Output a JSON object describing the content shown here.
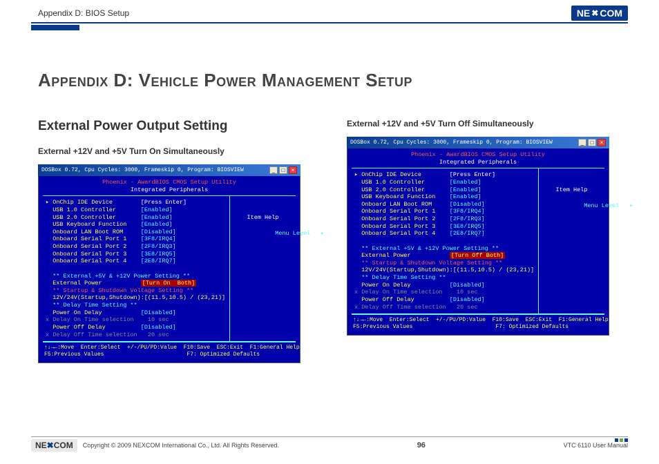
{
  "header": {
    "breadcrumb": "Appendix D: BIOS Setup",
    "brand": "NEXCOM"
  },
  "title": "Appendix D: Vehicle Power Management Setup",
  "left_section": {
    "heading": "External Power Output Setting",
    "subheading": "External +12V and +5V Turn On Simultaneously"
  },
  "right_section": {
    "subheading": "External +12V and +5V Turn Off Simultaneously"
  },
  "bios_common": {
    "titlebar": "DOSBox 0.72, Cpu Cycles:   3000, Frameskip  0, Program: BIOSVIEW",
    "head1": "Phoenix - AwardBIOS CMOS Setup Utility",
    "head2": "Integrated Peripherals",
    "item_help": "Item Help",
    "menu_level": "Menu Level   ▸",
    "footer1": "↑↓→←:Move  Enter:Select  +/-/PU/PD:Value  F10:Save  ESC:Exit  F1:General Help",
    "footer2": "F5:Previous Values                         F7: Optimized Defaults"
  },
  "bios_left": {
    "rows": [
      {
        "label": "▸ OnChip IDE Device",
        "value": "[Press Enter]",
        "cls": "bsel"
      },
      {
        "label": "  USB 1.0 Controller",
        "value": "[Enabled]",
        "cls": "benab"
      },
      {
        "label": "  USB 2.0 Controller",
        "value": "[Enabled]",
        "cls": "benab"
      },
      {
        "label": "  USB Keyboard Function",
        "value": "[Enabled]",
        "cls": "benab"
      },
      {
        "label": "  Onboard LAN Boot ROM",
        "value": "[Disabled]",
        "cls": "benab"
      },
      {
        "label": "  Onboard Serial Port 1",
        "value": "[3F8/IRQ4]",
        "cls": "benab"
      },
      {
        "label": "  Onboard Serial Port 2",
        "value": "[2F8/IRQ3]",
        "cls": "benab"
      },
      {
        "label": "  Onboard Serial Port 3",
        "value": "[3E8/IRQ5]",
        "cls": "benab"
      },
      {
        "label": "  Onboard Serial Port 4",
        "value": "[2E8/IRQ7]",
        "cls": "benab"
      }
    ],
    "sect1": "  ** External +5V & +12V Power Setting **",
    "ext_power_label": "  External Power",
    "ext_power_value": "[Turn On  Both]",
    "sect2": "  ** Startup & Shutdown Voltage Setting **",
    "voltage": "  12V/24V(Startup,Shutdown):[(11.5,10.5) / (23,21)]",
    "sect3": "  ** Delay Time Setting **",
    "rows2": [
      {
        "label": "  Power On Delay",
        "value": "[Disabled]",
        "cls": "benab"
      },
      {
        "label": "x Delay On Time selection",
        "value": "  10 sec",
        "cls": "bdim"
      },
      {
        "label": "  Power Off Delay",
        "value": "[Disabled]",
        "cls": "benab"
      },
      {
        "label": "x Delay Off Time selection",
        "value": "  20 sec",
        "cls": "bdim"
      }
    ]
  },
  "bios_right": {
    "rows": [
      {
        "label": "▸ OnChip IDE Device",
        "value": "[Press Enter]",
        "cls": "bsel"
      },
      {
        "label": "  USB 1.0 Controller",
        "value": "[Enabled]",
        "cls": "benab"
      },
      {
        "label": "  USB 2.0 Controller",
        "value": "[Enabled]",
        "cls": "benab"
      },
      {
        "label": "  USB Keyboard Function",
        "value": "[Enabled]",
        "cls": "benab"
      },
      {
        "label": "  Onboard LAN Boot ROM",
        "value": "[Disabled]",
        "cls": "benab"
      },
      {
        "label": "  Onboard Serial Port 1",
        "value": "[3F8/IRQ4]",
        "cls": "benab"
      },
      {
        "label": "  Onboard Serial Port 2",
        "value": "[2F8/IRQ3]",
        "cls": "benab"
      },
      {
        "label": "  Onboard Serial Port 3",
        "value": "[3E8/IRQ5]",
        "cls": "benab"
      },
      {
        "label": "  Onboard Serial Port 4",
        "value": "[2E8/IRQ7]",
        "cls": "benab"
      }
    ],
    "sect1": "  ** External +5V & +12V Power Setting **",
    "ext_power_label": "  External Power",
    "ext_power_value": "[Turn Off Both]",
    "sect2": "  ** Startup & Shutdown Voltage Setting **",
    "voltage": "  12V/24V(Startup,Shutdown):[(11.5,10.5) / (23,21)]",
    "sect3": "  ** Delay Time Setting **",
    "rows2": [
      {
        "label": "  Power On Delay",
        "value": "[Disabled]",
        "cls": "benab"
      },
      {
        "label": "x Delay On Time selection",
        "value": "  10 sec",
        "cls": "bdim"
      },
      {
        "label": "  Power Off Delay",
        "value": "[Disabled]",
        "cls": "benab"
      },
      {
        "label": "x Delay Off Time selection",
        "value": "  20 sec",
        "cls": "bdim"
      }
    ]
  },
  "footer": {
    "copyright": "Copyright © 2009 NEXCOM International Co., Ltd. All Rights Reserved.",
    "page": "96",
    "doc": "VTC 6110 User Manual"
  },
  "colors": {
    "bios_bg": "#0000aa",
    "bios_cyan": "#55ffff",
    "bios_yellow": "#ffff55",
    "bios_red_bg": "#aa0000",
    "brand_blue": "#0a3a8a"
  }
}
